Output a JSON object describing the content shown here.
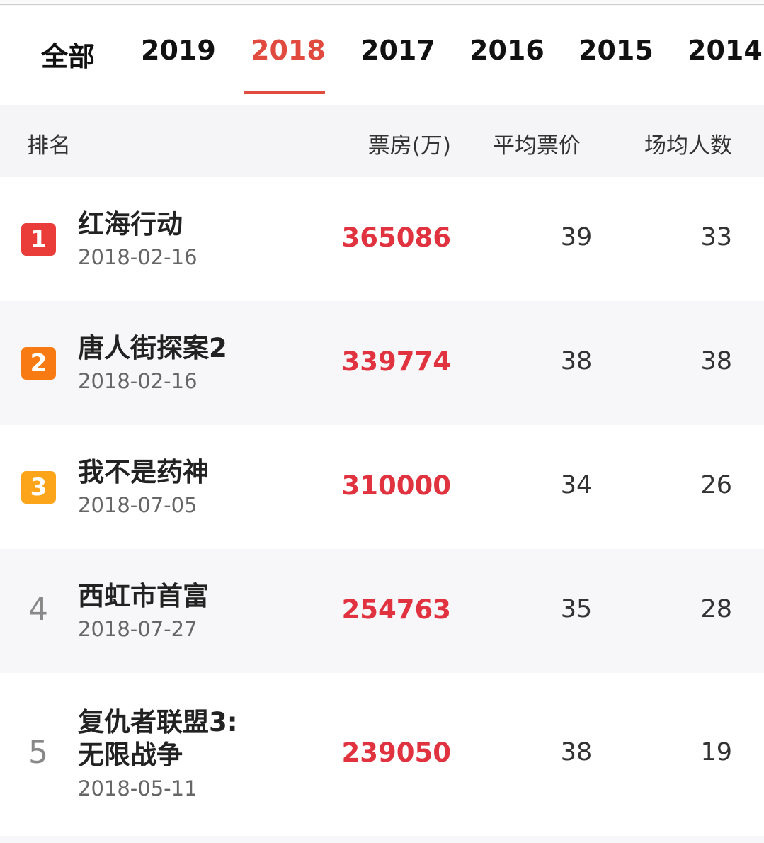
{
  "tabs": [
    {
      "label": "全部"
    },
    {
      "label": "2019"
    },
    {
      "label": "2018",
      "active": true
    },
    {
      "label": "2017"
    },
    {
      "label": "2016"
    },
    {
      "label": "2015"
    },
    {
      "label": "2014"
    }
  ],
  "table_header": {
    "rank": "排名",
    "box_office": "票房(万)",
    "avg_price": "平均票价",
    "avg_audience": "场均人数"
  },
  "colors": {
    "accent": "#e04a3f",
    "box_office": "#e0323f",
    "rank1": "#ea3d3a",
    "rank2": "#f77b12",
    "rank3": "#fca51a"
  },
  "rows": [
    {
      "rank": "1",
      "title": "红海行动",
      "title2": "",
      "date": "2018-02-16",
      "box_office": "365086",
      "avg_price": "39",
      "avg_audience": "33"
    },
    {
      "rank": "2",
      "title": "唐人街探案2",
      "title2": "",
      "date": "2018-02-16",
      "box_office": "339774",
      "avg_price": "38",
      "avg_audience": "38"
    },
    {
      "rank": "3",
      "title": "我不是药神",
      "title2": "",
      "date": "2018-07-05",
      "box_office": "310000",
      "avg_price": "34",
      "avg_audience": "26"
    },
    {
      "rank": "4",
      "title": "西虹市首富",
      "title2": "",
      "date": "2018-07-27",
      "box_office": "254763",
      "avg_price": "35",
      "avg_audience": "28"
    },
    {
      "rank": "5",
      "title": "复仇者联盟3:",
      "title2": "无限战争",
      "date": "2018-05-11",
      "box_office": "239050",
      "avg_price": "38",
      "avg_audience": "19"
    }
  ]
}
